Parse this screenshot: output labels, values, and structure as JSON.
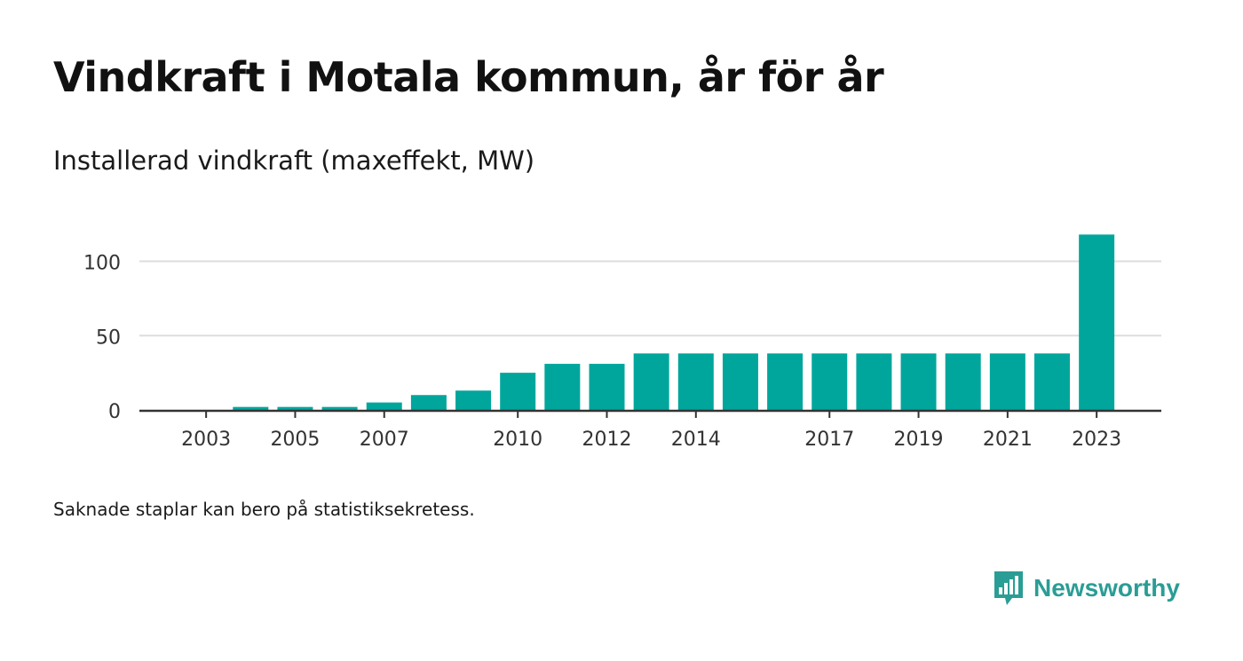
{
  "title": "Vindkraft i Motala kommun, år för år",
  "subtitle": "Installerad vindkraft (maxeffekt, MW)",
  "note": "Saknade staplar kan bero på statistiksekretess.",
  "brand": "Newsworthy",
  "colors": {
    "bar": "#00a69c",
    "grid": "#dddddd",
    "axis": "#333333",
    "brand": "#2a9d95"
  },
  "chart_data": {
    "type": "bar",
    "categories": [
      "2002",
      "2003",
      "2004",
      "2005",
      "2006",
      "2007",
      "2008",
      "2009",
      "2010",
      "2011",
      "2012",
      "2013",
      "2014",
      "2015",
      "2016",
      "2017",
      "2018",
      "2019",
      "2020",
      "2021",
      "2022",
      "2023"
    ],
    "values": [
      null,
      null,
      2,
      2,
      2,
      5,
      10,
      13,
      25,
      31,
      31,
      38,
      38,
      38,
      38,
      38,
      38,
      38,
      38,
      38,
      38,
      118
    ],
    "xticks": [
      "2003",
      "2005",
      "2007",
      "2010",
      "2012",
      "2014",
      "2017",
      "2019",
      "2021",
      "2023"
    ],
    "yticks": [
      0,
      50,
      100
    ],
    "ylim": [
      0,
      120
    ],
    "grid": true
  }
}
